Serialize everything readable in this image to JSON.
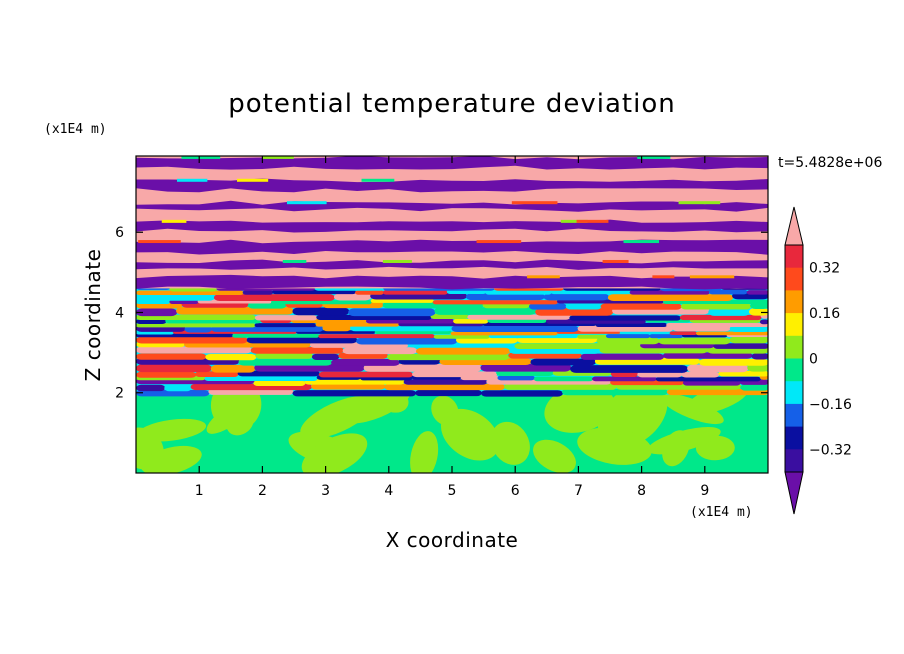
{
  "chart_data": {
    "type": "heatmap",
    "title": "potential temperature deviation",
    "xlabel": "X coordinate",
    "ylabel": "Z coordinate",
    "x_unit": "(x1E4 m)",
    "y_unit": "(x1E4 m)",
    "time_label": "t=5.4828e+06",
    "xlim": [
      0,
      10
    ],
    "ylim": [
      0,
      7.9
    ],
    "x_ticks": [
      1,
      2,
      3,
      4,
      5,
      6,
      7,
      8,
      9
    ],
    "y_ticks": [
      2,
      4,
      6
    ],
    "grid": false,
    "colorbar": {
      "levels": [
        -0.4,
        -0.32,
        -0.24,
        -0.16,
        -0.08,
        0,
        0.08,
        0.16,
        0.24,
        0.32,
        0.4
      ],
      "labeled": [
        "0.32",
        "0.16",
        "0",
        "−0.16",
        "−0.32"
      ],
      "colors": [
        "#6a0fa8",
        "#3a0ea0",
        "#0a0fa0",
        "#1560e8",
        "#00e8f8",
        "#00e88a",
        "#90ea1c",
        "#fff000",
        "#ff9c00",
        "#ff4a1c",
        "#e8283c",
        "#f8a8a8"
      ],
      "extend": "both"
    },
    "layers": [
      {
        "z_from": 0.0,
        "z_to": 1.95,
        "pattern": "green-mottled",
        "range": [
          -0.08,
          0.08
        ]
      },
      {
        "z_from": 1.95,
        "z_to": 4.6,
        "pattern": "multicolor-turbulent-bands",
        "range": [
          -0.4,
          0.4
        ]
      },
      {
        "z_from": 4.6,
        "z_to": 7.9,
        "pattern": "alternating-purple-pink-bands",
        "range": [
          -0.4,
          0.4
        ]
      }
    ]
  }
}
